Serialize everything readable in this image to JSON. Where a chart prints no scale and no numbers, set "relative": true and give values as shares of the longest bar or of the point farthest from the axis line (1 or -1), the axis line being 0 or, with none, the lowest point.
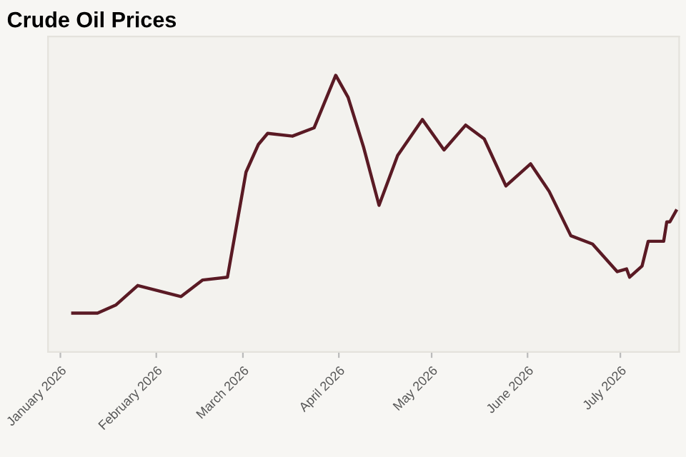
{
  "chart_data": {
    "type": "line",
    "title": "Crude Oil Prices",
    "relative": true,
    "x": [
      "2026-01-05",
      "2026-01-13",
      "2026-01-19",
      "2026-01-26",
      "2026-02-09",
      "2026-02-16",
      "2026-02-24",
      "2026-03-02",
      "2026-03-06",
      "2026-03-09",
      "2026-03-17",
      "2026-03-24",
      "2026-03-31",
      "2026-04-04",
      "2026-04-09",
      "2026-04-14",
      "2026-04-20",
      "2026-04-28",
      "2026-05-05",
      "2026-05-12",
      "2026-05-18",
      "2026-05-25",
      "2026-06-02",
      "2026-06-08",
      "2026-06-15",
      "2026-06-22",
      "2026-06-30",
      "2026-07-03",
      "2026-07-04",
      "2026-07-08",
      "2026-07-10",
      "2026-07-15",
      "2026-07-16",
      "2026-07-17",
      "2026-07-19"
    ],
    "series": [
      {
        "color": "#5a1a24",
        "values": [
          0.14,
          0.14,
          0.17,
          0.24,
          0.2,
          0.26,
          0.27,
          0.65,
          0.75,
          0.79,
          0.78,
          0.81,
          1,
          0.92,
          0.74,
          0.53,
          0.71,
          0.84,
          0.73,
          0.82,
          0.77,
          0.6,
          0.68,
          0.58,
          0.42,
          0.39,
          0.29,
          0.3,
          0.27,
          0.31,
          0.4,
          0.4,
          0.47,
          0.47,
          0.51
        ]
      }
    ],
    "xlim": [
      "2025-12-28",
      "2026-07-20"
    ],
    "xticks": [
      {
        "value": "2026-01-01",
        "label": "January 2026"
      },
      {
        "value": "2026-02-01",
        "label": "February 2026"
      },
      {
        "value": "2026-03-01",
        "label": "March 2026"
      },
      {
        "value": "2026-04-01",
        "label": "April 2026"
      },
      {
        "value": "2026-05-01",
        "label": "May 2026"
      },
      {
        "value": "2026-06-01",
        "label": "June 2026"
      },
      {
        "value": "2026-07-01",
        "label": "July 2026"
      }
    ],
    "tick_labels": "x",
    "grid": false,
    "marker": "none",
    "line_style": "solid"
  }
}
